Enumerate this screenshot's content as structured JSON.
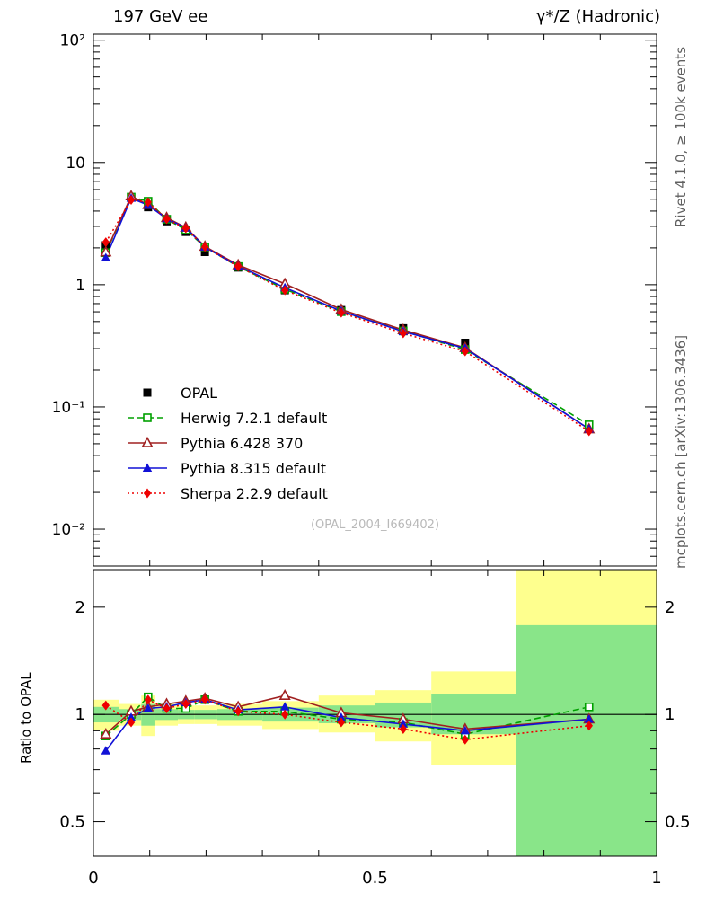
{
  "page": {
    "title_left": "197 GeV ee",
    "title_right": "γ*/Z (Hadronic)",
    "side_top": "Rivet 4.1.0, ≥ 100k events",
    "side_bottom": "mcplots.cern.ch [arXiv:1306.3436]",
    "watermark": "(OPAL_2004_I669402)",
    "ratio_label": "Ratio to OPAL"
  },
  "chart_data": {
    "type": "line",
    "x": [
      0.022,
      0.067,
      0.097,
      0.13,
      0.164,
      0.198,
      0.257,
      0.34,
      0.44,
      0.55,
      0.66,
      0.88
    ],
    "series": [
      {
        "name": "OPAL",
        "color": "#000000",
        "line": "none",
        "marker": "square-filled",
        "values": [
          2.1,
          5.2,
          4.3,
          3.3,
          2.7,
          1.85,
          1.38,
          0.9,
          0.62,
          0.44,
          0.335,
          0.068
        ],
        "is_reference": true
      },
      {
        "name": "Herwig 7.2.1 default",
        "color": "#00a000",
        "line": "dash",
        "marker": "square-open",
        "ratio": [
          0.87,
          1.0,
          1.12,
          1.04,
          1.04,
          1.1,
          1.02,
          1.02,
          0.97,
          0.95,
          0.88,
          1.05
        ]
      },
      {
        "name": "Pythia 6.428 370",
        "color": "#a02020",
        "line": "solid",
        "marker": "triangle-open",
        "ratio": [
          0.88,
          1.02,
          1.05,
          1.07,
          1.09,
          1.11,
          1.05,
          1.13,
          1.01,
          0.97,
          0.91,
          0.97
        ]
      },
      {
        "name": "Pythia 8.315 default",
        "color": "#1111d6",
        "line": "solid",
        "marker": "triangle-filled",
        "ratio": [
          0.79,
          0.98,
          1.04,
          1.05,
          1.08,
          1.1,
          1.03,
          1.05,
          0.98,
          0.94,
          0.9,
          0.97
        ]
      },
      {
        "name": "Sherpa 2.2.9 default",
        "color": "#ee0000",
        "line": "dot",
        "marker": "diamond-filled",
        "ratio": [
          1.06,
          0.95,
          1.1,
          1.04,
          1.07,
          1.1,
          1.02,
          1.0,
          0.95,
          0.91,
          0.85,
          0.93
        ]
      }
    ],
    "main_axis": {
      "scale": "log",
      "ylim": [
        0.005,
        112
      ],
      "yticks": [
        {
          "v": 100,
          "label": "10²"
        },
        {
          "v": 10,
          "label": "10"
        },
        {
          "v": 1,
          "label": "1"
        },
        {
          "v": 0.1,
          "label": "10⁻¹"
        },
        {
          "v": 0.01,
          "label": "10⁻²"
        }
      ]
    },
    "ratio_axis": {
      "scale": "log",
      "ylim": [
        0.4,
        2.55
      ],
      "yticks": [
        {
          "v": 2,
          "label": "2"
        },
        {
          "v": 1,
          "label": "1"
        },
        {
          "v": 0.5,
          "label": "0.5"
        }
      ],
      "reference": 1
    },
    "x_axis": {
      "lim": [
        0,
        1
      ],
      "ticks": [
        {
          "v": 0,
          "label": "0"
        },
        {
          "v": 0.5,
          "label": "0.5"
        },
        {
          "v": 1,
          "label": "1"
        }
      ]
    },
    "band_colors": {
      "outer": "#feff8e",
      "inner": "#89e589"
    },
    "bands": [
      {
        "xlo": 0.0,
        "xhi": 0.045,
        "ylo": 0.9,
        "yhi": 1.1,
        "glo": 0.95,
        "ghi": 1.05
      },
      {
        "xlo": 0.045,
        "xhi": 0.085,
        "ylo": 0.93,
        "yhi": 1.07,
        "glo": 0.965,
        "ghi": 1.035
      },
      {
        "xlo": 0.085,
        "xhi": 0.11,
        "ylo": 0.87,
        "yhi": 1.13,
        "glo": 0.93,
        "ghi": 1.07
      },
      {
        "xlo": 0.11,
        "xhi": 0.15,
        "ylo": 0.93,
        "yhi": 1.07,
        "glo": 0.965,
        "ghi": 1.035
      },
      {
        "xlo": 0.15,
        "xhi": 0.18,
        "ylo": 0.94,
        "yhi": 1.06,
        "glo": 0.97,
        "ghi": 1.03
      },
      {
        "xlo": 0.18,
        "xhi": 0.22,
        "ylo": 0.94,
        "yhi": 1.06,
        "glo": 0.97,
        "ghi": 1.03
      },
      {
        "xlo": 0.22,
        "xhi": 0.3,
        "ylo": 0.93,
        "yhi": 1.07,
        "glo": 0.965,
        "ghi": 1.035
      },
      {
        "xlo": 0.3,
        "xhi": 0.4,
        "ylo": 0.91,
        "yhi": 1.09,
        "glo": 0.955,
        "ghi": 1.045
      },
      {
        "xlo": 0.4,
        "xhi": 0.5,
        "ylo": 0.89,
        "yhi": 1.13,
        "glo": 0.945,
        "ghi": 1.06
      },
      {
        "xlo": 0.5,
        "xhi": 0.6,
        "ylo": 0.84,
        "yhi": 1.17,
        "glo": 0.92,
        "ghi": 1.08
      },
      {
        "xlo": 0.6,
        "xhi": 0.75,
        "ylo": 0.72,
        "yhi": 1.32,
        "glo": 0.88,
        "ghi": 1.14
      },
      {
        "xlo": 0.75,
        "xhi": 1.0,
        "ylo": 0.3,
        "yhi": 2.6,
        "glo": 0.3,
        "ghi": 1.78
      }
    ]
  }
}
